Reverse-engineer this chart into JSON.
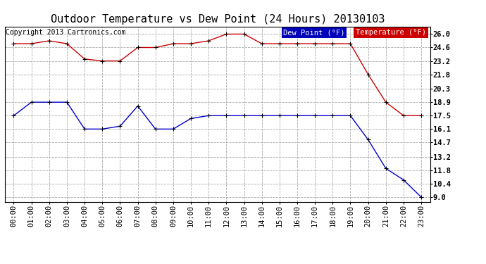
{
  "title": "Outdoor Temperature vs Dew Point (24 Hours) 20130103",
  "copyright": "Copyright 2013 Cartronics.com",
  "legend_dew": "Dew Point (°F)",
  "legend_temp": "Temperature (°F)",
  "x_labels": [
    "00:00",
    "01:00",
    "02:00",
    "03:00",
    "04:00",
    "05:00",
    "06:00",
    "07:00",
    "08:00",
    "09:00",
    "10:00",
    "11:00",
    "12:00",
    "13:00",
    "14:00",
    "15:00",
    "16:00",
    "17:00",
    "18:00",
    "19:00",
    "20:00",
    "21:00",
    "22:00",
    "23:00"
  ],
  "temperature": [
    25.0,
    25.0,
    25.3,
    25.0,
    23.4,
    23.2,
    23.2,
    24.6,
    24.6,
    25.0,
    25.0,
    25.3,
    26.0,
    26.0,
    25.0,
    25.0,
    25.0,
    25.0,
    25.0,
    25.0,
    21.8,
    18.9,
    17.5,
    17.5
  ],
  "dew_point": [
    17.5,
    18.9,
    18.9,
    18.9,
    16.1,
    16.1,
    16.4,
    18.5,
    16.1,
    16.1,
    17.2,
    17.5,
    17.5,
    17.5,
    17.5,
    17.5,
    17.5,
    17.5,
    17.5,
    17.5,
    15.0,
    12.0,
    10.8,
    9.0
  ],
  "yticks": [
    9.0,
    10.4,
    11.8,
    13.2,
    14.7,
    16.1,
    17.5,
    18.9,
    20.3,
    21.8,
    23.2,
    24.6,
    26.0
  ],
  "ylim": [
    8.5,
    26.8
  ],
  "bg_color": "#ffffff",
  "temp_color": "#cc0000",
  "dew_color": "#0000cc",
  "marker_color": "#000000",
  "grid_color": "#aaaaaa",
  "title_fontsize": 11,
  "axis_fontsize": 7.5,
  "copyright_fontsize": 7
}
